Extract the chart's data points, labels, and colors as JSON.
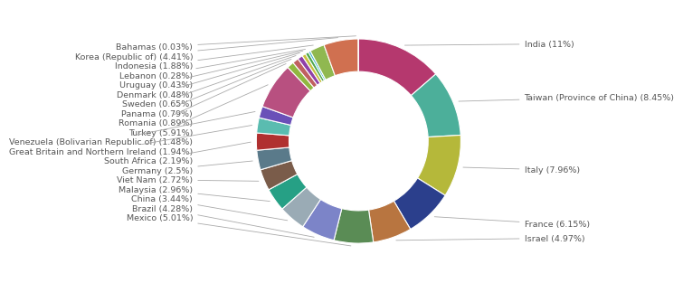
{
  "countries": [
    "India",
    "Taiwan (Province of China)",
    "Italy",
    "France",
    "Israel",
    "Mexico",
    "Brazil",
    "China",
    "Malaysia",
    "Viet Nam",
    "Germany",
    "South Africa",
    "Great Britain and Northern Ireland",
    "Venezuela (Bolivarian Republic of)",
    "Turkey",
    "Romania",
    "Panama",
    "Sweden",
    "Denmark",
    "Uruguay",
    "Lebanon",
    "Indonesia",
    "Korea (Republic of)",
    "Bahamas"
  ],
  "values": [
    11.0,
    8.45,
    7.96,
    6.15,
    4.97,
    5.01,
    4.28,
    3.44,
    2.96,
    2.72,
    2.5,
    2.19,
    1.94,
    1.48,
    5.91,
    0.89,
    0.79,
    0.65,
    0.48,
    0.43,
    0.28,
    1.88,
    4.41,
    0.03
  ],
  "colors": [
    "#b5386e",
    "#4caf9a",
    "#b5b83a",
    "#2b3f8c",
    "#b87540",
    "#5a8c55",
    "#7c84c8",
    "#9aabb5",
    "#26a085",
    "#7a5c4a",
    "#5a7a8a",
    "#b03030",
    "#5abcb0",
    "#6a50b8",
    "#b85080",
    "#90b840",
    "#c06060",
    "#9040a8",
    "#c8c040",
    "#50a850",
    "#40b0d0",
    "#90b850",
    "#d07050",
    "#e06090"
  ],
  "label_map": {
    "India": "India (11%)",
    "Taiwan (Province of China)": "Taiwan (Province of China) (8.45%)",
    "Italy": "Italy (7.96%)",
    "France": "France (6.15%)",
    "Israel": "Israel (4.97%)",
    "Mexico": "Mexico (5.01%)",
    "Brazil": "Brazil (4.28%)",
    "China": "China (3.44%)",
    "Malaysia": "Malaysia (2.96%)",
    "Viet Nam": "Viet Nam (2.72%)",
    "Germany": "Germany (2.5%)",
    "South Africa": "South Africa (2.19%)",
    "Great Britain and Northern Ireland": "Great Britain and Northern Ireland (1.94%)",
    "Venezuela (Bolivarian Republic of)": "Venezuela (Bolivarian Republic of) (1.48%)",
    "Turkey": "Turkey (5.91%)",
    "Romania": "Romania (0.89%)",
    "Panama": "Panama (0.79%)",
    "Sweden": "Sweden (0.65%)",
    "Denmark": "Denmark (0.48%)",
    "Uruguay": "Uruguay (0.43%)",
    "Lebanon": "Lebanon (0.28%)",
    "Indonesia": "Indonesia (1.88%)",
    "Korea (Republic of)": "Korea (Republic of) (4.41%)",
    "Bahamas": "Bahamas (0.03%)"
  },
  "background_color": "#ffffff",
  "label_fontsize": 6.8,
  "label_color": "#555555",
  "line_color": "#aaaaaa"
}
